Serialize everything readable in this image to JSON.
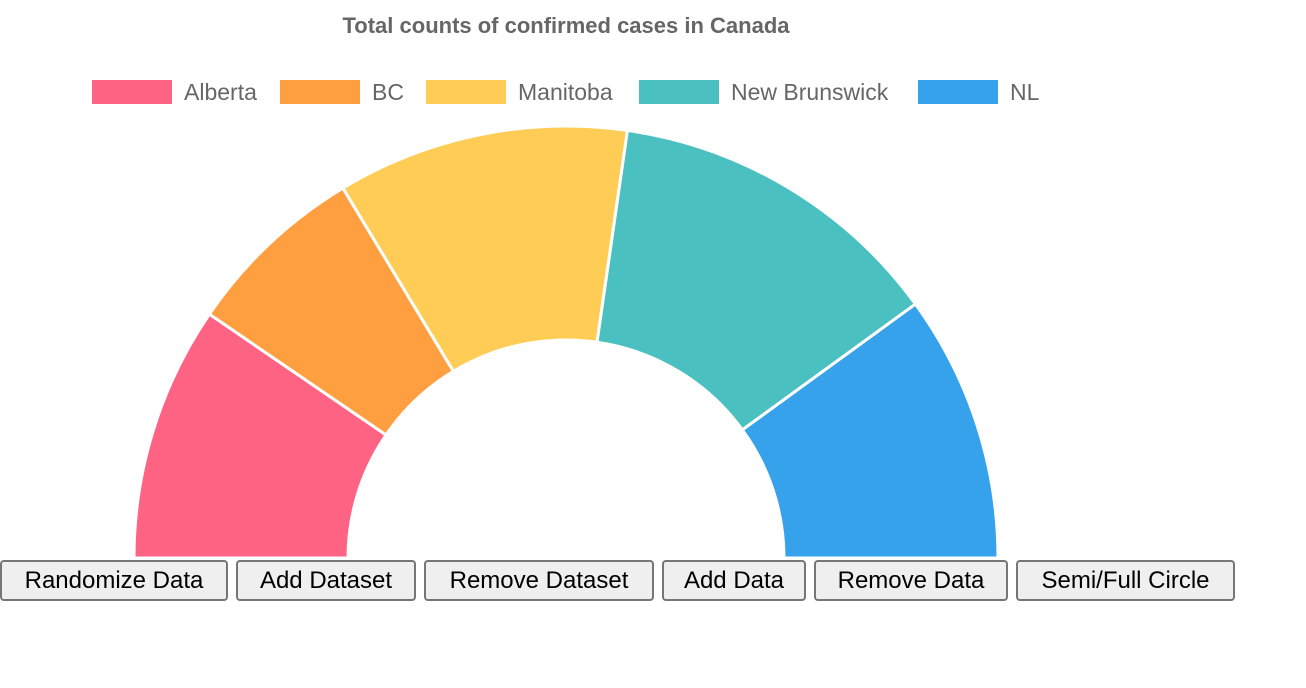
{
  "chart_data": {
    "type": "pie",
    "variant": "semi-doughnut",
    "title": "Total counts of confirmed cases in Canada",
    "legend_position": "top",
    "labels": [
      "Alberta",
      "BC",
      "Manitoba",
      "New Brunswick",
      "NL"
    ],
    "values": [
      21,
      15,
      24,
      28,
      22
    ],
    "colors": [
      "#ff6384",
      "#ff9f40",
      "#ffcd56",
      "#4bc0c0",
      "#36a2eb"
    ]
  },
  "controls": {
    "buttons": [
      {
        "id": "randomize",
        "label": "Randomize Data"
      },
      {
        "id": "add-dataset",
        "label": "Add Dataset"
      },
      {
        "id": "remove-dataset",
        "label": "Remove Dataset"
      },
      {
        "id": "add-data",
        "label": "Add Data"
      },
      {
        "id": "remove-data",
        "label": "Remove Data"
      },
      {
        "id": "semi-full",
        "label": "Semi/Full Circle"
      }
    ]
  }
}
